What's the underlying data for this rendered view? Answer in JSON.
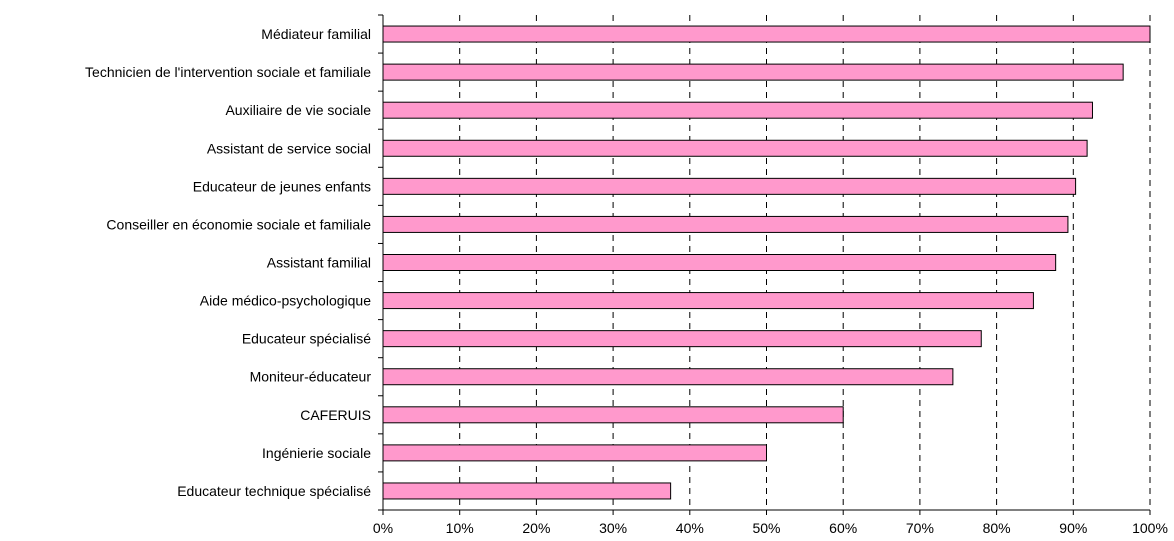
{
  "chart_data": {
    "type": "bar",
    "orientation": "horizontal",
    "categories": [
      "Médiateur familial",
      "Technicien de l'intervention sociale et familiale",
      "Auxiliaire de vie sociale",
      "Assistant de service social",
      "Educateur de jeunes enfants",
      "Conseiller en économie sociale et familiale",
      "Assistant familial",
      "Aide médico-psychologique",
      "Educateur spécialisé",
      "Moniteur-éducateur",
      "CAFERUIS",
      "Ingénierie sociale",
      "Educateur technique spécialisé"
    ],
    "values": [
      100,
      96.5,
      92.5,
      91.8,
      90.3,
      89.3,
      87.7,
      84.8,
      78,
      74.3,
      60,
      50,
      37.5
    ],
    "value_unit": "%",
    "xlim": [
      0,
      100
    ],
    "x_ticks": [
      "0%",
      "10%",
      "20%",
      "30%",
      "40%",
      "50%",
      "60%",
      "70%",
      "80%",
      "90%",
      "100%"
    ],
    "grid": "vertical dashed",
    "bar_color": "#ff99cc",
    "bar_border_color": "#000000",
    "title": "",
    "xlabel": "",
    "ylabel": ""
  }
}
